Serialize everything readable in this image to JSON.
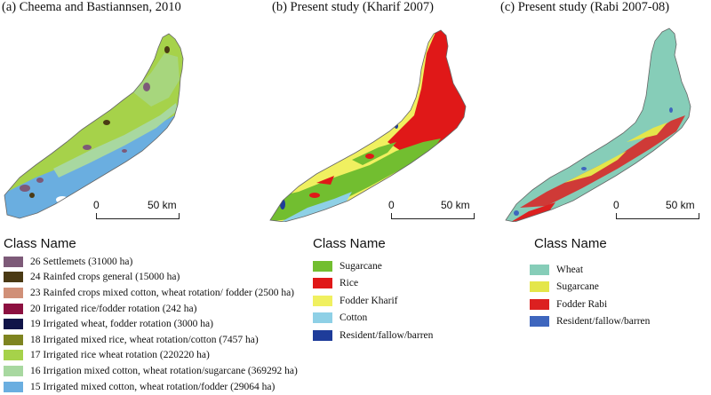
{
  "panels": [
    {
      "title": "(a) Cheema and Bastiannsen, 2010",
      "scale": {
        "start": "0",
        "end": "50 km"
      },
      "legend_title": "Class Name",
      "legend": [
        {
          "label": "26 Settlemets (31000 ha)",
          "color": "#7d5a78"
        },
        {
          "label": "24 Rainfed crops general (15000 ha)",
          "color": "#4a3a14"
        },
        {
          "label": "23 Rainfed crops mixed cotton, wheat rotation/ fodder (2500 ha)",
          "color": "#d09078"
        },
        {
          "label": "20 Irrigated rice/fodder rotation (242 ha)",
          "color": "#8c1040"
        },
        {
          "label": "19 Irrigated wheat, fodder rotation (3000 ha)",
          "color": "#101448"
        },
        {
          "label": "18 Irrigated mixed rice, wheat rotation/cotton (7457 ha)",
          "color": "#7e8420"
        },
        {
          "label": "17 Irrigated rice wheat rotation (220220 ha)",
          "color": "#a6d24a"
        },
        {
          "label": "16 Irrigation mixed cotton, wheat rotation/sugarcane (369292 ha)",
          "color": "#a8d8a0"
        },
        {
          "label": "15 Irrigated mixed cotton, wheat rotation/fodder (29064 ha)",
          "color": "#6aaee0"
        }
      ]
    },
    {
      "title": "(b) Present study (Kharif 2007)",
      "scale": {
        "start": "0",
        "end": "50 km"
      },
      "legend_title": "Class Name",
      "legend": [
        {
          "label": "Sugarcane",
          "color": "#72be30"
        },
        {
          "label": "Rice",
          "color": "#e01818"
        },
        {
          "label": "Fodder Kharif",
          "color": "#f0f060"
        },
        {
          "label": "Cotton",
          "color": "#8ed0e6"
        },
        {
          "label": "Resident/fallow/barren",
          "color": "#1e3c9a"
        }
      ]
    },
    {
      "title": "(c) Present study (Rabi 2007-08)",
      "scale": {
        "start": "0",
        "end": "50 km"
      },
      "legend_title": "Class Name",
      "legend": [
        {
          "label": "Wheat",
          "color": "#86cdb8"
        },
        {
          "label": "Sugarcane",
          "color": "#e4e64a"
        },
        {
          "label": "Fodder Rabi",
          "color": "#dc2020"
        },
        {
          "label": "Resident/fallow/barren",
          "color": "#3e66be"
        }
      ]
    }
  ]
}
